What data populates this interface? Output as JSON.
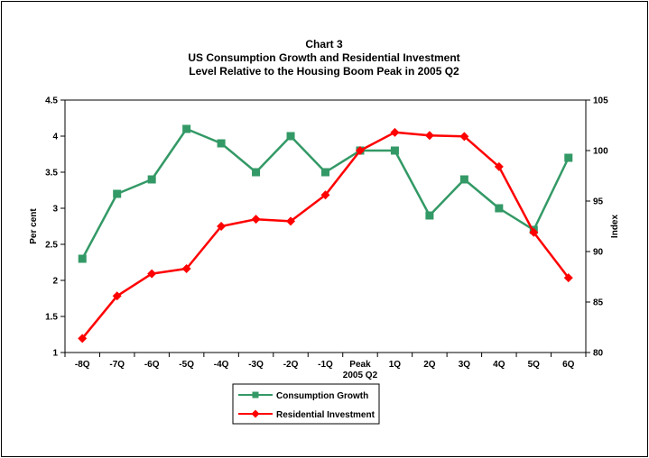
{
  "chart_data": {
    "type": "line",
    "title_lines": [
      "Chart 3",
      "US Consumption Growth and Residential Investment",
      "Level Relative to the Housing Boom Peak in 2005 Q2"
    ],
    "categories": [
      "-8Q",
      "-7Q",
      "-6Q",
      "-5Q",
      "-4Q",
      "-3Q",
      "-2Q",
      "-1Q",
      "Peak",
      "1Q",
      "2Q",
      "3Q",
      "4Q",
      "5Q",
      "6Q"
    ],
    "x_sublabel": "2005 Q2",
    "ylabel_left": "Per cent",
    "ylabel_right": "Index",
    "ylim_left": [
      1,
      4.5
    ],
    "yticks_left": [
      "1",
      "1.5",
      "2",
      "2.5",
      "3",
      "3.5",
      "4",
      "4.5"
    ],
    "ylim_right": [
      80,
      105
    ],
    "yticks_right": [
      "80",
      "85",
      "90",
      "95",
      "100",
      "105"
    ],
    "grid": false,
    "legend_position": "bottom-center",
    "series": [
      {
        "name": "Consumption Growth",
        "axis": "left",
        "color": "#339966",
        "marker": "square",
        "values": [
          2.3,
          3.2,
          3.4,
          4.1,
          3.9,
          3.5,
          4.0,
          3.5,
          3.8,
          3.8,
          2.9,
          3.4,
          3.0,
          2.7,
          3.7
        ]
      },
      {
        "name": "Residential Investment",
        "axis": "right",
        "color": "#ff0000",
        "marker": "diamond",
        "values": [
          81.4,
          85.6,
          87.8,
          88.3,
          92.5,
          93.2,
          93.0,
          95.6,
          100.0,
          101.8,
          101.5,
          101.4,
          98.4,
          91.9,
          87.4
        ]
      }
    ]
  }
}
